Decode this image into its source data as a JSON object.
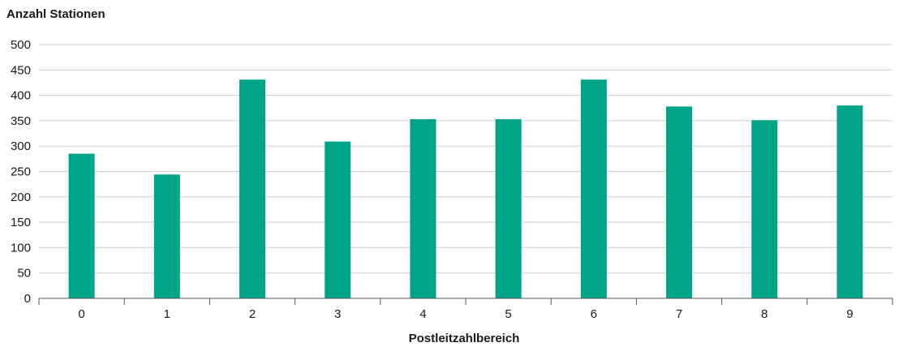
{
  "chart_data": {
    "type": "bar",
    "ylabel": "Anzahl Stationen",
    "xlabel": "Postleitzahlbereich",
    "categories": [
      "0",
      "1",
      "2",
      "3",
      "4",
      "5",
      "6",
      "7",
      "8",
      "9"
    ],
    "values": [
      285,
      244,
      431,
      309,
      353,
      353,
      431,
      378,
      351,
      380
    ],
    "ylim": [
      0,
      500
    ],
    "yticks": [
      "0",
      "50",
      "100",
      "150",
      "200",
      "250",
      "300",
      "350",
      "400",
      "450",
      "500"
    ],
    "grid": true,
    "bar_color": "#00a588"
  }
}
